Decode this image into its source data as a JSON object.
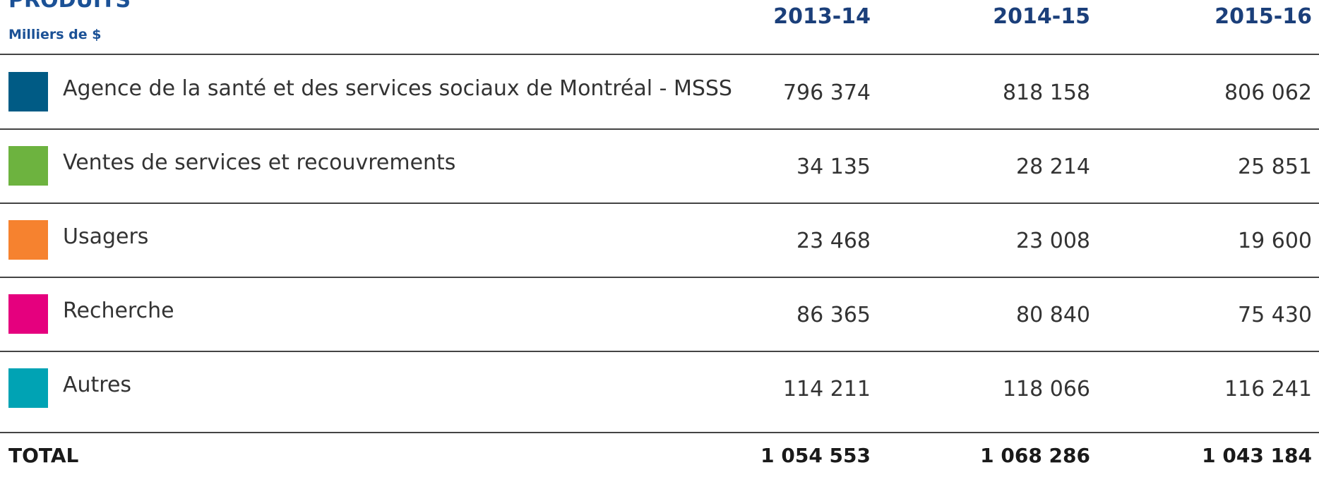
{
  "table": {
    "title": "PRODUITS",
    "subtitle": "Milliers de $",
    "columns": [
      "2013-14",
      "2014-15",
      "2015-16"
    ],
    "rows": [
      {
        "label": "Agence de la santé et des services sociaux de Montréal - MSSS",
        "color": "#005b85",
        "values": [
          "796 374",
          "818 158",
          "806 062"
        ]
      },
      {
        "label": "Ventes de services et recouvrements",
        "color": "#6db33f",
        "values": [
          "34 135",
          "28 214",
          "25 851"
        ]
      },
      {
        "label": "Usagers",
        "color": "#f6822f",
        "values": [
          "23 468",
          "23 008",
          "19 600"
        ]
      },
      {
        "label": "Recherche",
        "color": "#e5007e",
        "values": [
          "86 365",
          "80 840",
          "75 430"
        ]
      },
      {
        "label": "Autres",
        "color": "#00a3b4",
        "values": [
          "114 211",
          "118 066",
          "116 241"
        ]
      }
    ],
    "total": {
      "label": "TOTAL",
      "values": [
        "1 054 553",
        "1 068 286",
        "1 043 184"
      ]
    }
  }
}
